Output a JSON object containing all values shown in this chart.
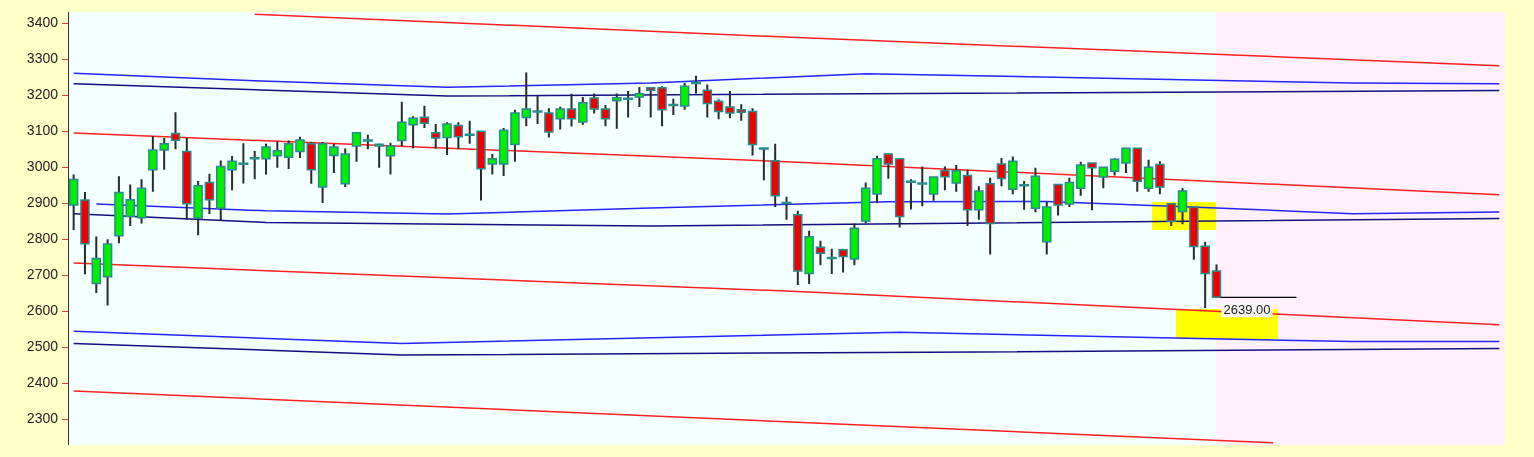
{
  "chart_data": {
    "type": "candlestick",
    "tick_labels": "y",
    "categories": [
      null,
      null,
      null,
      null,
      null,
      null,
      null,
      null,
      null,
      null,
      null,
      null,
      null,
      null,
      null,
      null,
      null,
      null,
      null,
      null,
      null,
      null,
      null,
      null,
      null,
      null,
      null,
      null,
      null,
      null,
      null,
      null,
      null,
      null,
      null,
      null,
      null,
      null,
      null,
      null,
      null,
      null,
      null,
      null,
      null,
      null,
      null,
      null,
      null,
      null,
      null,
      null,
      null,
      null,
      null,
      null,
      null,
      null,
      null,
      null,
      null,
      null,
      null,
      null,
      null,
      null,
      null,
      null,
      null,
      null,
      null,
      null,
      null,
      null,
      null,
      null,
      null,
      null,
      null,
      null,
      null,
      null,
      null,
      null,
      null,
      null,
      null,
      null,
      null,
      null,
      null,
      null,
      null,
      null,
      null,
      null,
      null,
      null,
      null,
      null,
      null,
      null,
      null,
      null,
      null,
      null,
      null,
      null,
      null,
      null,
      null,
      null,
      null,
      null,
      null,
      null,
      null,
      null,
      null,
      null,
      null,
      null,
      null,
      null,
      null,
      null,
      null
    ],
    "ohlc": [
      [
        2895,
        2980,
        2826,
        2966
      ],
      [
        2909,
        2931,
        2703,
        2788
      ],
      [
        2677,
        2808,
        2651,
        2747
      ],
      [
        2696,
        2800,
        2616,
        2787
      ],
      [
        2810,
        2975,
        2789,
        2930
      ],
      [
        2863,
        2952,
        2837,
        2910
      ],
      [
        2860,
        2967,
        2844,
        2942
      ],
      [
        2993,
        3087,
        2932,
        3048
      ],
      [
        3048,
        3081,
        2993,
        3065
      ],
      [
        3094,
        3153,
        3050,
        3075
      ],
      [
        3044,
        3081,
        2854,
        2899
      ],
      [
        2859,
        2962,
        2811,
        2949
      ],
      [
        2958,
        2982,
        2870,
        2910
      ],
      [
        2886,
        3019,
        2853,
        3002
      ],
      [
        2993,
        3031,
        2936,
        3017
      ],
      [
        3010,
        3067,
        2955,
        3010
      ],
      [
        3025,
        3045,
        2967,
        3025
      ],
      [
        3024,
        3065,
        2980,
        3056
      ],
      [
        3032,
        3072,
        2999,
        3046
      ],
      [
        3028,
        3074,
        2995,
        3065
      ],
      [
        3044,
        3085,
        3026,
        3076
      ],
      [
        3065,
        3070,
        2954,
        2993
      ],
      [
        2945,
        3070,
        2901,
        3065
      ],
      [
        3033,
        3065,
        2984,
        3056
      ],
      [
        2954,
        3052,
        2945,
        3037
      ],
      [
        3059,
        3096,
        3015,
        3096
      ],
      [
        3074,
        3090,
        3050,
        3074
      ],
      [
        3059,
        3065,
        2999,
        3064
      ],
      [
        3032,
        3068,
        2980,
        3059
      ],
      [
        3074,
        3182,
        3059,
        3125
      ],
      [
        3118,
        3142,
        3053,
        3136
      ],
      [
        3139,
        3171,
        3109,
        3122
      ],
      [
        3096,
        3120,
        3052,
        3081
      ],
      [
        3083,
        3125,
        3034,
        3120
      ],
      [
        3116,
        3125,
        3050,
        3085
      ],
      [
        3090,
        3129,
        3065,
        3090
      ],
      [
        3100,
        3100,
        2908,
        2996
      ],
      [
        3009,
        3037,
        2980,
        3024
      ],
      [
        3009,
        3109,
        2976,
        3103
      ],
      [
        3063,
        3160,
        3015,
        3151
      ],
      [
        3138,
        3263,
        3114,
        3162
      ],
      [
        3155,
        3199,
        3120,
        3155
      ],
      [
        3151,
        3164,
        3083,
        3098
      ],
      [
        3135,
        3168,
        3105,
        3162
      ],
      [
        3162,
        3204,
        3113,
        3135
      ],
      [
        3126,
        3195,
        3118,
        3179
      ],
      [
        3192,
        3205,
        3149,
        3162
      ],
      [
        3162,
        3173,
        3114,
        3135
      ],
      [
        3185,
        3205,
        3107,
        3193
      ],
      [
        3190,
        3212,
        3138,
        3190
      ],
      [
        3195,
        3223,
        3167,
        3204
      ],
      [
        3221,
        3223,
        3138,
        3214
      ],
      [
        3221,
        3225,
        3114,
        3160
      ],
      [
        3173,
        3190,
        3145,
        3173
      ],
      [
        3170,
        3234,
        3160,
        3225
      ],
      [
        3234,
        3254,
        3205,
        3234
      ],
      [
        3214,
        3230,
        3138,
        3177
      ],
      [
        3183,
        3188,
        3133,
        3155
      ],
      [
        3167,
        3212,
        3136,
        3151
      ],
      [
        3160,
        3175,
        3129,
        3153
      ],
      [
        3155,
        3164,
        3033,
        3063
      ],
      [
        3052,
        3052,
        2964,
        3052
      ],
      [
        3018,
        3065,
        2890,
        2921
      ],
      [
        2901,
        2918,
        2854,
        2901
      ],
      [
        2868,
        2879,
        2673,
        2712
      ],
      [
        2705,
        2824,
        2676,
        2807
      ],
      [
        2778,
        2796,
        2728,
        2761
      ],
      [
        2748,
        2774,
        2704,
        2748
      ],
      [
        2771,
        2774,
        2708,
        2752
      ],
      [
        2745,
        2844,
        2728,
        2831
      ],
      [
        2851,
        2958,
        2844,
        2942
      ],
      [
        2926,
        3032,
        2901,
        3024
      ],
      [
        3037,
        3039,
        2968,
        3009
      ],
      [
        3024,
        3024,
        2833,
        2863
      ],
      [
        2960,
        2967,
        2883,
        2960
      ],
      [
        2955,
        3002,
        2892,
        2955
      ],
      [
        2926,
        2973,
        2907,
        2973
      ],
      [
        2991,
        3002,
        2936,
        2974
      ],
      [
        2956,
        3006,
        2932,
        2990
      ],
      [
        2977,
        2993,
        2837,
        2882
      ],
      [
        2882,
        2947,
        2854,
        2934
      ],
      [
        2954,
        2971,
        2758,
        2844
      ],
      [
        3009,
        3026,
        2947,
        2969
      ],
      [
        2939,
        3030,
        2925,
        3017
      ],
      [
        2950,
        2962,
        2882,
        2950
      ],
      [
        2886,
        2999,
        2875,
        2975
      ],
      [
        2793,
        2904,
        2758,
        2890
      ],
      [
        2952,
        2952,
        2866,
        2895
      ],
      [
        2898,
        2971,
        2890,
        2958
      ],
      [
        2942,
        3015,
        2921,
        3006
      ],
      [
        3012,
        3012,
        2881,
        2999
      ],
      [
        2973,
        3000,
        2942,
        3000
      ],
      [
        2989,
        3025,
        2977,
        3022
      ],
      [
        3012,
        3053,
        2984,
        3053
      ],
      [
        3053,
        3053,
        2932,
        2961
      ],
      [
        2942,
        3021,
        2932,
        3000
      ],
      [
        3008,
        3017,
        2925,
        2945
      ],
      [
        2899,
        2899,
        2837,
        2850
      ],
      [
        2877,
        2942,
        2842,
        2934
      ],
      [
        2890,
        2890,
        2743,
        2780
      ],
      [
        2781,
        2793,
        2609,
        2705
      ],
      [
        2712,
        2730,
        2639,
        2639
      ],
      null,
      null,
      null,
      null,
      null,
      null,
      null,
      null,
      null,
      null,
      null,
      null,
      null,
      null,
      null,
      null,
      null,
      null,
      null,
      null,
      null,
      null,
      null,
      null,
      null
    ],
    "ylim": [
      2230,
      3430
    ],
    "yticks": [
      2300,
      2400,
      2500,
      2600,
      2700,
      2800,
      2900,
      3000,
      3100,
      3200,
      3300,
      3400
    ],
    "series": [
      {
        "type": "line",
        "color": "#ff2020",
        "values": [
          null,
          null,
          null,
          null,
          null,
          null,
          null,
          null,
          null,
          null,
          null,
          null,
          null,
          null,
          null,
          null,
          3425,
          null,
          null,
          null,
          null,
          null,
          null,
          null,
          null,
          null,
          null,
          null,
          null,
          null,
          null,
          null,
          null,
          null,
          null,
          null,
          null,
          null,
          null,
          null,
          null,
          null,
          null,
          null,
          null,
          null,
          null,
          null,
          null,
          null,
          null,
          null,
          null,
          null,
          null,
          null,
          null,
          null,
          null,
          null,
          null,
          null,
          null,
          null,
          3360,
          null,
          null,
          null,
          null,
          null,
          null,
          null,
          null,
          null,
          null,
          null,
          null,
          null,
          null,
          null,
          null,
          null,
          null,
          null,
          null,
          null,
          null,
          null,
          null,
          null,
          null,
          null,
          null,
          null,
          null,
          null,
          null,
          null,
          null,
          null,
          null,
          null,
          null,
          null,
          null,
          null,
          null,
          null,
          null,
          null,
          null,
          null,
          null,
          null,
          null,
          null,
          null,
          null,
          null,
          null,
          null,
          null,
          null,
          null,
          null,
          null,
          3282
        ]
      },
      {
        "type": "line",
        "color": "#ff2020",
        "values": [
          3095,
          null,
          null,
          null,
          null,
          null,
          null,
          null,
          null,
          null,
          null,
          null,
          null,
          null,
          null,
          null,
          null,
          null,
          null,
          null,
          null,
          null,
          null,
          null,
          null,
          null,
          null,
          null,
          null,
          null,
          null,
          null,
          null,
          null,
          null,
          null,
          null,
          null,
          null,
          null,
          null,
          null,
          null,
          null,
          null,
          null,
          null,
          null,
          null,
          null,
          null,
          null,
          null,
          null,
          null,
          null,
          null,
          null,
          null,
          null,
          null,
          null,
          null,
          null,
          3014,
          null,
          null,
          null,
          null,
          null,
          null,
          null,
          null,
          null,
          null,
          null,
          null,
          null,
          null,
          null,
          null,
          null,
          null,
          null,
          null,
          null,
          null,
          null,
          null,
          null,
          null,
          null,
          null,
          null,
          null,
          null,
          null,
          null,
          null,
          null,
          null,
          null,
          null,
          null,
          null,
          null,
          null,
          null,
          null,
          null,
          null,
          null,
          null,
          null,
          null,
          null,
          null,
          null,
          null,
          null,
          null,
          null,
          null,
          null,
          null,
          null,
          2924
        ]
      },
      {
        "type": "line",
        "color": "#ff2020",
        "values": [
          2734,
          null,
          null,
          null,
          null,
          null,
          null,
          null,
          null,
          null,
          null,
          null,
          null,
          null,
          null,
          null,
          null,
          null,
          null,
          null,
          null,
          null,
          null,
          null,
          null,
          null,
          null,
          null,
          null,
          null,
          null,
          null,
          null,
          null,
          null,
          null,
          null,
          null,
          null,
          null,
          null,
          null,
          null,
          null,
          null,
          null,
          null,
          null,
          null,
          null,
          null,
          null,
          null,
          null,
          null,
          null,
          null,
          null,
          null,
          null,
          null,
          null,
          null,
          null,
          2655,
          null,
          null,
          null,
          null,
          null,
          null,
          null,
          null,
          null,
          null,
          null,
          null,
          null,
          null,
          null,
          null,
          null,
          null,
          null,
          null,
          null,
          null,
          null,
          null,
          null,
          null,
          null,
          null,
          null,
          null,
          null,
          null,
          null,
          null,
          null,
          null,
          null,
          null,
          null,
          null,
          null,
          null,
          null,
          null,
          null,
          null,
          null,
          null,
          null,
          null,
          null,
          null,
          null,
          null,
          null,
          null,
          null,
          null,
          null,
          null,
          null,
          2563
        ]
      },
      {
        "type": "line",
        "color": "#ff2020",
        "values": [
          2379,
          null,
          null,
          null,
          null,
          null,
          null,
          null,
          null,
          null,
          null,
          null,
          null,
          null,
          null,
          null,
          null,
          null,
          null,
          null,
          null,
          null,
          null,
          null,
          null,
          null,
          null,
          null,
          null,
          null,
          null,
          null,
          null,
          null,
          null,
          null,
          null,
          null,
          null,
          null,
          null,
          null,
          null,
          null,
          null,
          null,
          null,
          null,
          null,
          null,
          null,
          null,
          null,
          null,
          null,
          null,
          null,
          null,
          null,
          null,
          null,
          null,
          null,
          null,
          null,
          null,
          null,
          null,
          null,
          null,
          null,
          null,
          null,
          null,
          null,
          null,
          null,
          null,
          null,
          null,
          null,
          null,
          null,
          null,
          null,
          null,
          null,
          null,
          null,
          null,
          null,
          null,
          null,
          null,
          null,
          null,
          null,
          null,
          null,
          null,
          null,
          null,
          null,
          null,
          null,
          null,
          2235,
          null,
          null,
          null,
          null,
          null,
          null,
          null,
          null,
          null,
          null,
          null,
          null,
          null,
          null,
          null,
          null,
          null,
          null,
          null,
          null
        ]
      },
      {
        "type": "line",
        "color": "#2424ff",
        "values": [
          3261,
          null,
          null,
          null,
          null,
          null,
          null,
          null,
          null,
          null,
          null,
          null,
          null,
          null,
          null,
          null,
          3240,
          null,
          null,
          null,
          null,
          null,
          null,
          null,
          null,
          null,
          null,
          null,
          null,
          null,
          null,
          null,
          null,
          3222,
          null,
          null,
          null,
          null,
          null,
          null,
          null,
          null,
          null,
          null,
          null,
          null,
          null,
          null,
          null,
          null,
          null,
          3234,
          null,
          null,
          null,
          null,
          null,
          null,
          null,
          null,
          null,
          null,
          null,
          null,
          null,
          null,
          null,
          null,
          null,
          null,
          3260,
          null,
          null,
          null,
          null,
          null,
          null,
          null,
          null,
          null,
          null,
          null,
          null,
          null,
          null,
          null,
          null,
          null,
          null,
          null,
          null,
          null,
          null,
          null,
          null,
          null,
          null,
          null,
          null,
          null,
          null,
          null,
          null,
          null,
          null,
          null,
          null,
          null,
          null,
          null,
          null,
          null,
          null,
          3234,
          null,
          null,
          null,
          null,
          null,
          null,
          null,
          null,
          null,
          null,
          null,
          null,
          3232
        ]
      },
      {
        "type": "line",
        "color": "#101080",
        "values": [
          3232,
          null,
          null,
          null,
          null,
          null,
          null,
          null,
          null,
          null,
          null,
          null,
          null,
          null,
          null,
          null,
          null,
          null,
          null,
          null,
          null,
          null,
          null,
          null,
          null,
          null,
          null,
          null,
          null,
          null,
          null,
          null,
          null,
          3198,
          null,
          null,
          null,
          null,
          null,
          null,
          null,
          null,
          null,
          null,
          null,
          null,
          null,
          null,
          null,
          null,
          null,
          null,
          null,
          null,
          null,
          null,
          null,
          null,
          null,
          null,
          null,
          null,
          null,
          null,
          null,
          null,
          null,
          null,
          null,
          null,
          null,
          null,
          null,
          null,
          null,
          null,
          null,
          null,
          null,
          null,
          null,
          null,
          null,
          null,
          null,
          null,
          null,
          null,
          null,
          null,
          null,
          null,
          null,
          null,
          null,
          null,
          null,
          null,
          null,
          null,
          null,
          null,
          null,
          null,
          null,
          null,
          null,
          null,
          null,
          null,
          null,
          null,
          null,
          null,
          null,
          null,
          null,
          null,
          null,
          null,
          null,
          null,
          null,
          null,
          null,
          null,
          3213
        ]
      },
      {
        "type": "line",
        "color": "#2424ff",
        "values": [
          null,
          null,
          2898,
          null,
          null,
          null,
          null,
          null,
          null,
          null,
          null,
          null,
          null,
          null,
          null,
          null,
          null,
          2879,
          null,
          null,
          null,
          null,
          null,
          null,
          null,
          null,
          null,
          null,
          null,
          null,
          null,
          null,
          null,
          2870,
          null,
          null,
          null,
          null,
          null,
          null,
          null,
          null,
          null,
          null,
          null,
          null,
          null,
          null,
          null,
          null,
          null,
          2887,
          null,
          null,
          null,
          null,
          null,
          null,
          null,
          null,
          null,
          null,
          null,
          null,
          null,
          null,
          null,
          null,
          null,
          null,
          null,
          null,
          2904,
          null,
          null,
          null,
          null,
          null,
          null,
          null,
          null,
          null,
          null,
          null,
          null,
          null,
          2905,
          null,
          null,
          null,
          null,
          null,
          null,
          null,
          null,
          null,
          null,
          null,
          null,
          null,
          null,
          2887,
          null,
          null,
          null,
          null,
          null,
          null,
          null,
          null,
          null,
          null,
          null,
          2871,
          null,
          null,
          null,
          null,
          null,
          null,
          null,
          null,
          null,
          null,
          null,
          null,
          2876
        ]
      },
      {
        "type": "line",
        "color": "#101080",
        "values": [
          2871,
          null,
          null,
          null,
          null,
          null,
          null,
          null,
          null,
          null,
          null,
          null,
          null,
          null,
          null,
          null,
          null,
          2847,
          null,
          null,
          null,
          null,
          null,
          null,
          null,
          null,
          null,
          null,
          null,
          null,
          null,
          null,
          null,
          null,
          null,
          null,
          null,
          null,
          null,
          null,
          null,
          null,
          null,
          null,
          null,
          null,
          null,
          null,
          null,
          null,
          null,
          2837,
          null,
          null,
          null,
          null,
          null,
          null,
          null,
          null,
          null,
          null,
          null,
          null,
          null,
          null,
          null,
          null,
          null,
          null,
          null,
          null,
          null,
          null,
          null,
          null,
          null,
          null,
          null,
          null,
          null,
          null,
          null,
          null,
          null,
          null,
          null,
          null,
          null,
          null,
          null,
          null,
          null,
          null,
          null,
          null,
          null,
          null,
          null,
          null,
          null,
          null,
          null,
          null,
          null,
          null,
          null,
          null,
          null,
          null,
          null,
          null,
          null,
          null,
          null,
          null,
          null,
          null,
          null,
          null,
          null,
          null,
          null,
          null,
          null,
          null,
          2858
        ]
      },
      {
        "type": "line",
        "color": "#2424ff",
        "values": [
          2545,
          null,
          null,
          null,
          null,
          null,
          null,
          null,
          null,
          null,
          null,
          null,
          null,
          null,
          null,
          null,
          null,
          null,
          null,
          null,
          null,
          null,
          null,
          null,
          null,
          null,
          null,
          null,
          null,
          2511,
          null,
          null,
          null,
          null,
          null,
          null,
          null,
          null,
          null,
          null,
          null,
          null,
          null,
          null,
          null,
          null,
          null,
          null,
          null,
          null,
          null,
          null,
          null,
          null,
          null,
          null,
          null,
          null,
          null,
          null,
          null,
          null,
          null,
          null,
          null,
          null,
          null,
          null,
          null,
          null,
          null,
          null,
          null,
          2542,
          null,
          null,
          null,
          null,
          null,
          null,
          null,
          null,
          null,
          null,
          null,
          null,
          null,
          null,
          null,
          null,
          null,
          null,
          null,
          null,
          null,
          null,
          null,
          null,
          null,
          null,
          null,
          null,
          null,
          null,
          null,
          null,
          null,
          null,
          null,
          null,
          null,
          null,
          null,
          2516,
          null,
          null,
          null,
          null,
          null,
          null,
          null,
          null,
          null,
          null,
          null,
          null,
          2516
        ]
      },
      {
        "type": "line",
        "color": "#101080",
        "values": [
          2511,
          null,
          null,
          null,
          null,
          null,
          null,
          null,
          null,
          null,
          null,
          null,
          null,
          null,
          null,
          null,
          null,
          null,
          null,
          null,
          null,
          null,
          null,
          null,
          null,
          null,
          null,
          null,
          null,
          2479,
          null,
          null,
          null,
          null,
          null,
          null,
          null,
          null,
          null,
          null,
          null,
          null,
          null,
          null,
          null,
          null,
          null,
          null,
          null,
          null,
          null,
          null,
          null,
          null,
          null,
          null,
          null,
          null,
          null,
          null,
          null,
          null,
          null,
          null,
          null,
          null,
          null,
          null,
          null,
          null,
          null,
          null,
          null,
          null,
          null,
          null,
          null,
          null,
          null,
          null,
          2487,
          null,
          null,
          null,
          null,
          null,
          null,
          null,
          null,
          null,
          null,
          null,
          null,
          null,
          null,
          null,
          null,
          null,
          null,
          null,
          null,
          null,
          null,
          null,
          null,
          null,
          null,
          null,
          null,
          null,
          null,
          null,
          null,
          null,
          null,
          null,
          null,
          null,
          null,
          null,
          null,
          null,
          null,
          null,
          null,
          null,
          2497
        ]
      }
    ],
    "annotations": [
      "2639.00"
    ]
  }
}
